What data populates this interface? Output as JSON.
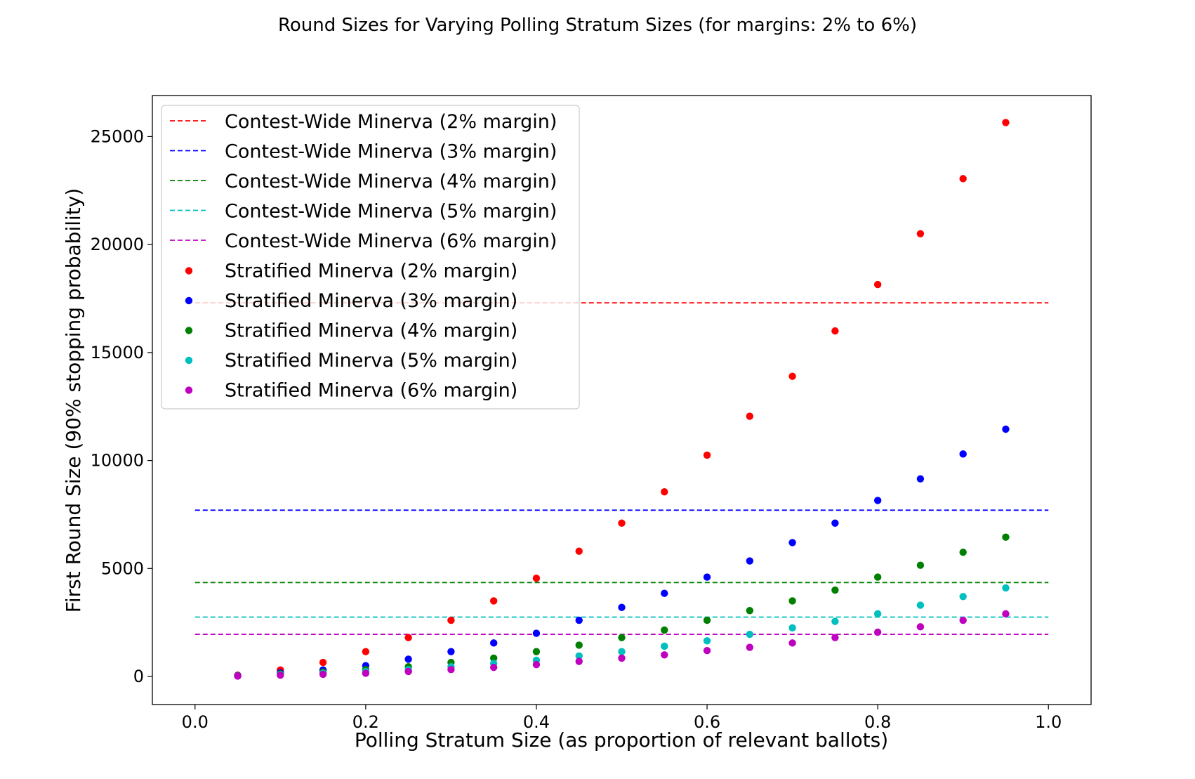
{
  "chart_data": {
    "type": "scatter",
    "title": "Round Sizes for Varying Polling Stratum Sizes (for margins: 2% to 6%)",
    "xlabel": "Polling Stratum Size (as proportion of relevant ballots)",
    "ylabel": "First Round Size (90% stopping probability)",
    "xlim": [
      -0.05,
      1.05
    ],
    "ylim": [
      -1300,
      26900
    ],
    "xticks": [
      0.0,
      0.2,
      0.4,
      0.6,
      0.8,
      1.0
    ],
    "xtick_labels": [
      "0.0",
      "0.2",
      "0.4",
      "0.6",
      "0.8",
      "1.0"
    ],
    "yticks": [
      0,
      5000,
      10000,
      15000,
      20000,
      25000
    ],
    "ytick_labels": [
      "0",
      "5000",
      "10000",
      "15000",
      "20000",
      "25000"
    ],
    "grid": false,
    "legend_position": "top-left",
    "reference_lines": [
      {
        "name": "Contest-Wide Minerva (2% margin)",
        "color": "#ff0000",
        "y": 17300,
        "x_range": [
          0.0,
          1.0
        ]
      },
      {
        "name": "Contest-Wide Minerva (3% margin)",
        "color": "#0000ff",
        "y": 7700,
        "x_range": [
          0.0,
          1.0
        ]
      },
      {
        "name": "Contest-Wide Minerva (4% margin)",
        "color": "#008000",
        "y": 4350,
        "x_range": [
          0.0,
          1.0
        ]
      },
      {
        "name": "Contest-Wide Minerva (5% margin)",
        "color": "#00bfbf",
        "y": 2750,
        "x_range": [
          0.0,
          1.0
        ]
      },
      {
        "name": "Contest-Wide Minerva (6% margin)",
        "color": "#bf00bf",
        "y": 1950,
        "x_range": [
          0.0,
          1.0
        ]
      }
    ],
    "x": [
      0.05,
      0.1,
      0.15,
      0.2,
      0.25,
      0.3,
      0.35,
      0.4,
      0.45,
      0.5,
      0.55,
      0.6,
      0.65,
      0.7,
      0.75,
      0.8,
      0.85,
      0.9,
      0.95
    ],
    "series": [
      {
        "name": "Stratified Minerva (2% margin)",
        "color": "#ff0000",
        "values": [
          60,
          300,
          650,
          1150,
          1800,
          2600,
          3500,
          4550,
          5800,
          7100,
          8550,
          10250,
          12050,
          13900,
          16000,
          18150,
          20500,
          23050,
          25650
        ]
      },
      {
        "name": "Stratified Minerva (3% margin)",
        "color": "#0000ff",
        "values": [
          40,
          170,
          300,
          500,
          800,
          1150,
          1550,
          2000,
          2600,
          3200,
          3850,
          4600,
          5350,
          6200,
          7100,
          8150,
          9150,
          10300,
          11450
        ]
      },
      {
        "name": "Stratified Minerva (4% margin)",
        "color": "#008000",
        "values": [
          30,
          120,
          200,
          320,
          450,
          650,
          850,
          1150,
          1450,
          1800,
          2150,
          2600,
          3050,
          3500,
          4000,
          4600,
          5150,
          5750,
          6450
        ]
      },
      {
        "name": "Stratified Minerva (5% margin)",
        "color": "#00bfbf",
        "values": [
          25,
          90,
          150,
          230,
          320,
          450,
          600,
          750,
          950,
          1150,
          1400,
          1650,
          1950,
          2250,
          2550,
          2900,
          3300,
          3700,
          4100
        ]
      },
      {
        "name": "Stratified Minerva (6% margin)",
        "color": "#bf00bf",
        "values": [
          20,
          60,
          100,
          150,
          230,
          320,
          420,
          550,
          700,
          850,
          1000,
          1200,
          1350,
          1550,
          1800,
          2050,
          2300,
          2600,
          2900
        ]
      }
    ]
  }
}
